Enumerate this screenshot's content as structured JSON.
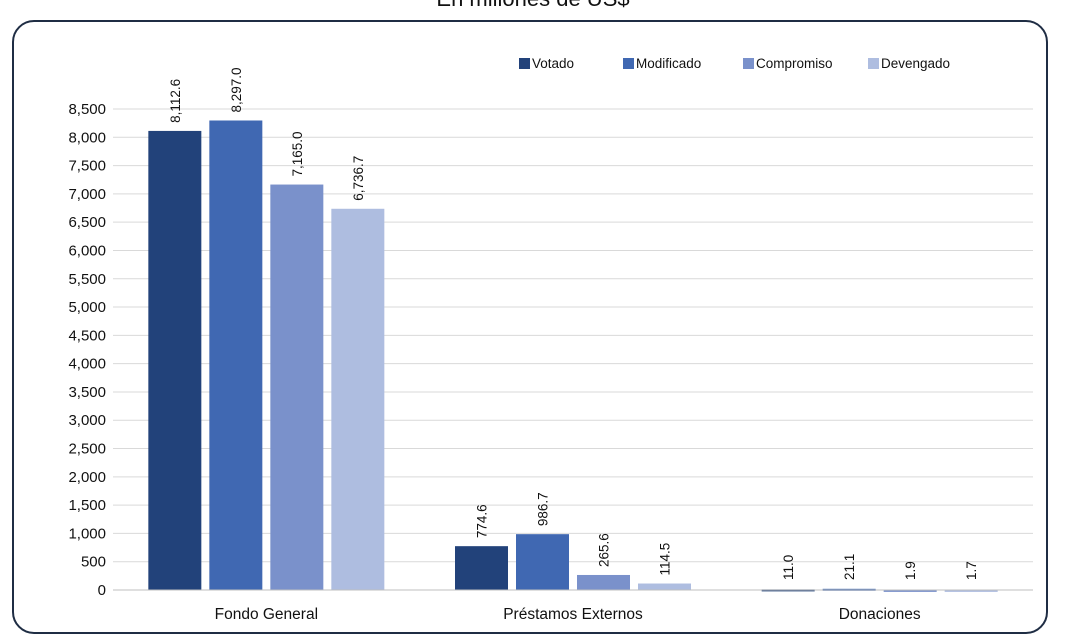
{
  "header": {
    "subtitle": "En millones de US$"
  },
  "chart_data": {
    "type": "bar",
    "categories": [
      "Fondo General",
      "Préstamos Externos",
      "Donaciones"
    ],
    "series": [
      {
        "name": "Votado",
        "values": [
          8112.6,
          774.6,
          11.0
        ],
        "labels": [
          "8,112.6",
          "774.6",
          "11.0"
        ],
        "color": "#22427a"
      },
      {
        "name": "Modificado",
        "values": [
          8297.0,
          986.7,
          21.1
        ],
        "labels": [
          "8,297.0",
          "986.7",
          "21.1"
        ],
        "color": "#4068b2"
      },
      {
        "name": "Compromiso",
        "values": [
          7165.0,
          265.6,
          1.9
        ],
        "labels": [
          "7,165.0",
          "265.6",
          "1.9"
        ],
        "color": "#7a91cb"
      },
      {
        "name": "Devengado",
        "values": [
          6736.7,
          114.5,
          1.7
        ],
        "labels": [
          "6,736.7",
          "114.5",
          "1.7"
        ],
        "color": "#aebde0"
      }
    ],
    "yticks": [
      "0",
      "500",
      "1,000",
      "1,500",
      "2,000",
      "2,500",
      "3,000",
      "3,500",
      "4,000",
      "4,500",
      "5,000",
      "5,500",
      "6,000",
      "6,500",
      "7,000",
      "7,500",
      "8,000",
      "8,500"
    ],
    "ylim": [
      0,
      8500
    ],
    "ytick_step": 500,
    "grid": true,
    "legend": "top-right"
  }
}
